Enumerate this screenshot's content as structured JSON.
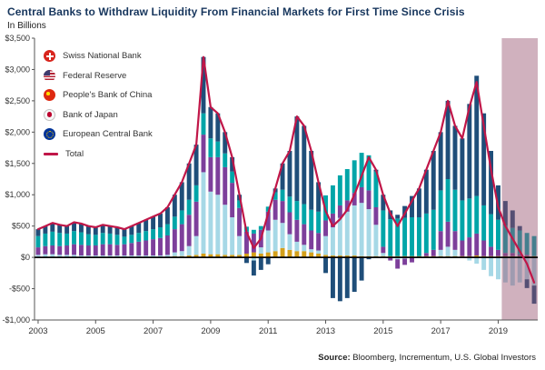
{
  "title": "Central Banks to Withdraw Liquidity From Financial Markets for First Time Since Crisis",
  "subtitle": "In Billions",
  "source": {
    "label": "Source:",
    "text": " Bloomberg, Incrementum, U.S. Global Investors"
  },
  "legend": [
    {
      "name": "Swiss National Bank",
      "flag": "swiss",
      "color": "#D4A01A"
    },
    {
      "name": "Federal Reserve",
      "flag": "us",
      "color": "#A6D8E6"
    },
    {
      "name": "People's Bank of China",
      "flag": "china",
      "color": "#7D3F9B"
    },
    {
      "name": "Bank of Japan",
      "flag": "japan",
      "color": "#00A5A8"
    },
    {
      "name": "European Central Bank",
      "flag": "eu",
      "color": "#1F4E79"
    },
    {
      "name": "Total",
      "flag": "total",
      "color": "#C01648"
    }
  ],
  "chart_data": {
    "type": "bar",
    "stacked": true,
    "title": "Central Banks to Withdraw Liquidity From Financial Markets for First Time Since Crisis",
    "ylabel": "In Billions",
    "ylim": [
      -1000,
      3500
    ],
    "y_ticks": [
      -1000,
      -500,
      0,
      500,
      1000,
      1500,
      2000,
      2500,
      3000,
      3500
    ],
    "y_tick_labels": [
      "-$1,000",
      "-$500",
      "$0",
      "$500",
      "$1,000",
      "$1,500",
      "$2,000",
      "$2,500",
      "$3,000",
      "$3,500"
    ],
    "x": [
      "2003Q1",
      "2003Q2",
      "2003Q3",
      "2003Q4",
      "2004Q1",
      "2004Q2",
      "2004Q3",
      "2004Q4",
      "2005Q1",
      "2005Q2",
      "2005Q3",
      "2005Q4",
      "2006Q1",
      "2006Q2",
      "2006Q3",
      "2006Q4",
      "2007Q1",
      "2007Q2",
      "2007Q3",
      "2007Q4",
      "2008Q1",
      "2008Q2",
      "2008Q3",
      "2008Q4",
      "2009Q1",
      "2009Q2",
      "2009Q3",
      "2009Q4",
      "2010Q1",
      "2010Q2",
      "2010Q3",
      "2010Q4",
      "2011Q1",
      "2011Q2",
      "2011Q3",
      "2011Q4",
      "2012Q1",
      "2012Q2",
      "2012Q3",
      "2012Q4",
      "2013Q1",
      "2013Q2",
      "2013Q3",
      "2013Q4",
      "2014Q1",
      "2014Q2",
      "2014Q3",
      "2014Q4",
      "2015Q1",
      "2015Q2",
      "2015Q3",
      "2015Q4",
      "2016Q1",
      "2016Q2",
      "2016Q3",
      "2016Q4",
      "2017Q1",
      "2017Q2",
      "2017Q3",
      "2017Q4",
      "2018Q1",
      "2018Q2",
      "2018Q3",
      "2018Q4",
      "2019Q1",
      "2019Q2",
      "2019Q3",
      "2019Q4",
      "2020Q1",
      "2020Q2"
    ],
    "x_tick_labels": [
      "2003",
      "2005",
      "2007",
      "2009",
      "2011",
      "2013",
      "2015",
      "2017",
      "2019"
    ],
    "x_tick_indices": [
      0,
      8,
      16,
      24,
      32,
      40,
      48,
      56,
      64
    ],
    "series": [
      {
        "name": "Swiss National Bank",
        "color": "#D4A01A",
        "values": [
          10,
          10,
          10,
          10,
          10,
          10,
          10,
          10,
          10,
          10,
          10,
          10,
          10,
          10,
          10,
          10,
          10,
          10,
          10,
          20,
          20,
          30,
          40,
          60,
          50,
          50,
          40,
          40,
          40,
          60,
          80,
          60,
          80,
          100,
          150,
          120,
          100,
          100,
          80,
          60,
          40,
          30,
          30,
          30,
          30,
          20,
          20,
          20,
          20,
          20,
          20,
          20,
          20,
          20,
          20,
          20,
          20,
          20,
          20,
          20,
          20,
          30,
          20,
          20,
          20,
          20,
          20,
          20,
          20,
          20
        ]
      },
      {
        "name": "Federal Reserve",
        "color": "#A6D8E6",
        "values": [
          30,
          40,
          40,
          30,
          30,
          30,
          20,
          20,
          20,
          20,
          20,
          20,
          20,
          20,
          20,
          20,
          20,
          20,
          30,
          60,
          80,
          150,
          300,
          1300,
          1000,
          950,
          800,
          600,
          300,
          0,
          -50,
          100,
          350,
          500,
          400,
          250,
          150,
          100,
          50,
          50,
          300,
          450,
          600,
          700,
          800,
          850,
          750,
          500,
          50,
          0,
          -30,
          -20,
          0,
          0,
          0,
          0,
          100,
          150,
          100,
          0,
          -50,
          -100,
          -200,
          -300,
          -350,
          -400,
          -450,
          -400,
          -350,
          -450
        ]
      },
      {
        "name": "People's Bank of China",
        "color": "#7D3F9B",
        "values": [
          120,
          130,
          140,
          140,
          150,
          170,
          170,
          160,
          160,
          180,
          180,
          170,
          180,
          200,
          220,
          240,
          260,
          280,
          310,
          370,
          430,
          500,
          550,
          600,
          550,
          600,
          600,
          550,
          450,
          350,
          300,
          280,
          300,
          320,
          350,
          350,
          350,
          330,
          300,
          280,
          250,
          220,
          200,
          180,
          200,
          250,
          300,
          280,
          100,
          -50,
          -150,
          -100,
          -80,
          0,
          50,
          100,
          300,
          400,
          300,
          250,
          300,
          350,
          250,
          150,
          100,
          50,
          50,
          30,
          20,
          0
        ]
      },
      {
        "name": "Bank of Japan",
        "color": "#00A5A8",
        "values": [
          180,
          200,
          220,
          210,
          190,
          210,
          200,
          180,
          170,
          180,
          170,
          160,
          120,
          130,
          140,
          150,
          160,
          170,
          180,
          200,
          220,
          240,
          260,
          340,
          300,
          250,
          220,
          180,
          120,
          80,
          60,
          60,
          80,
          120,
          180,
          250,
          300,
          320,
          330,
          340,
          400,
          450,
          480,
          500,
          520,
          550,
          560,
          570,
          580,
          590,
          600,
          610,
          620,
          620,
          630,
          640,
          650,
          680,
          660,
          640,
          620,
          600,
          560,
          520,
          480,
          440,
          400,
          380,
          350,
          320
        ]
      },
      {
        "name": "European Central Bank",
        "color": "#1F4E79",
        "values": [
          110,
          120,
          140,
          130,
          120,
          140,
          140,
          130,
          120,
          130,
          120,
          120,
          120,
          140,
          160,
          180,
          200,
          220,
          270,
          350,
          450,
          580,
          650,
          900,
          500,
          450,
          340,
          230,
          90,
          -90,
          -240,
          -200,
          -110,
          60,
          420,
          730,
          1350,
          1250,
          940,
          470,
          -250,
          -650,
          -700,
          -650,
          -550,
          -370,
          -30,
          30,
          250,
          140,
          60,
          190,
          340,
          460,
          700,
          940,
          930,
          1250,
          1020,
          990,
          1510,
          1920,
          1470,
          1010,
          550,
          390,
          280,
          70,
          -140,
          -290
        ]
      }
    ],
    "line_series": {
      "name": "Total",
      "color": "#C01648",
      "values": [
        450,
        500,
        550,
        520,
        500,
        560,
        540,
        500,
        480,
        520,
        500,
        480,
        450,
        500,
        550,
        600,
        650,
        700,
        800,
        1000,
        1200,
        1500,
        1800,
        3200,
        2400,
        2300,
        2000,
        1600,
        1000,
        400,
        150,
        300,
        700,
        1100,
        1500,
        1700,
        2250,
        2100,
        1700,
        1200,
        740,
        500,
        610,
        760,
        1000,
        1300,
        1600,
        1400,
        1000,
        700,
        500,
        700,
        900,
        1100,
        1400,
        1700,
        2000,
        2500,
        2100,
        1900,
        2400,
        2800,
        2100,
        1400,
        800,
        500,
        300,
        100,
        -100,
        -400
      ]
    },
    "highlight_region": {
      "from_index": 65,
      "color": "rgba(150,82,110,0.45)"
    },
    "grid": false,
    "legend_position": "upper-left"
  }
}
